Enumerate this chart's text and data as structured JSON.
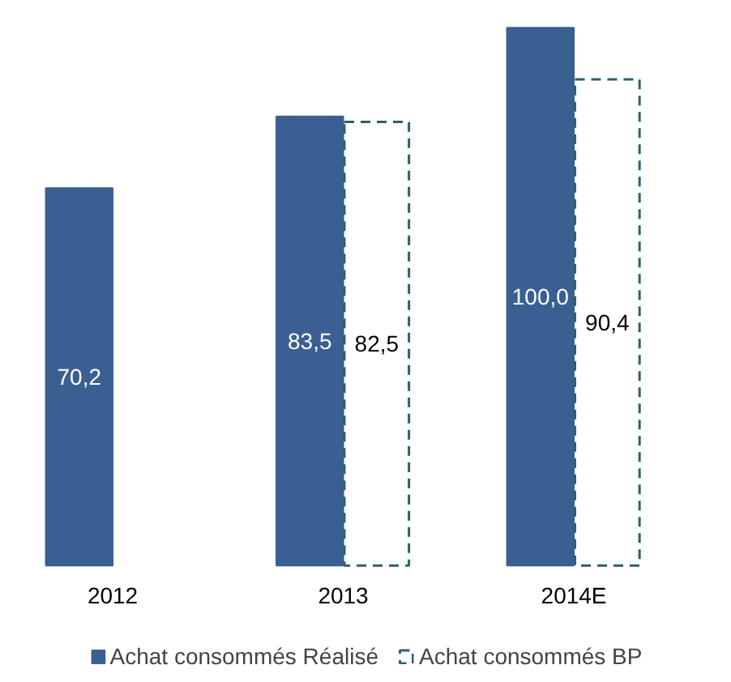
{
  "chart_data": {
    "type": "bar",
    "categories": [
      "2012",
      "2013",
      "2014E"
    ],
    "series": [
      {
        "name": "Achat consommés Réalisé",
        "color": "#3a6091",
        "values": [
          70.2,
          83.5,
          100.0
        ],
        "value_labels": [
          "70,2",
          "83,5",
          "100,0"
        ]
      },
      {
        "name": "Achat consommés BP",
        "color": "#2f5f6f",
        "line_style": "dashed",
        "values": [
          null,
          82.5,
          90.4
        ],
        "value_labels": [
          null,
          "82,5",
          "90,4"
        ]
      }
    ],
    "legend": "bottom"
  }
}
